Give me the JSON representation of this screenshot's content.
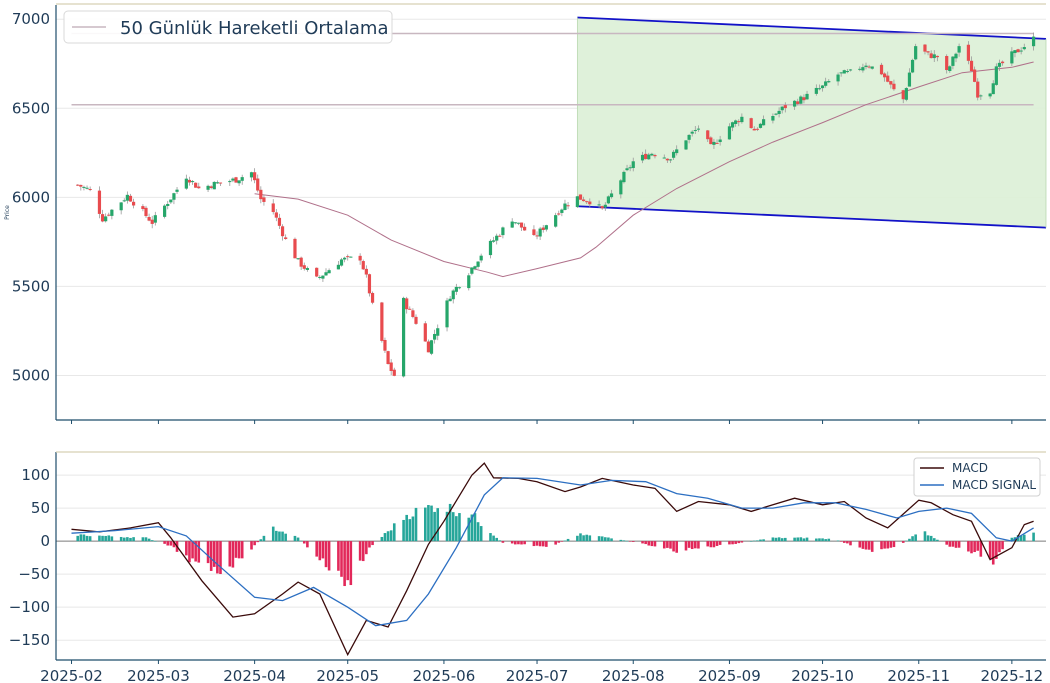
{
  "chart_data": [
    {
      "type": "candlestick",
      "ylabel": "Price",
      "ylim": [
        4750,
        7080
      ],
      "yticks": [
        5000,
        5500,
        6000,
        6500,
        7000
      ],
      "x_range": [
        "2025-01-27",
        "2025-12-12"
      ],
      "grid": "horizontal",
      "legend": {
        "position": "top-left",
        "entries": [
          "50 Günlük Hareketli Ortalama"
        ]
      },
      "price_keypoints": [
        [
          "2025-02-03",
          6070
        ],
        [
          "2025-02-07",
          6040
        ],
        [
          "2025-02-11",
          5880
        ],
        [
          "2025-02-19",
          6010
        ],
        [
          "2025-02-27",
          5860
        ],
        [
          "2025-03-06",
          6020
        ],
        [
          "2025-03-10",
          6120
        ],
        [
          "2025-03-14",
          6050
        ],
        [
          "2025-03-20",
          6080
        ],
        [
          "2025-03-26",
          6100
        ],
        [
          "2025-03-31",
          6140
        ],
        [
          "2025-04-03",
          5990
        ],
        [
          "2025-04-07",
          5920
        ],
        [
          "2025-04-11",
          5760
        ],
        [
          "2025-04-15",
          5640
        ],
        [
          "2025-04-21",
          5540
        ],
        [
          "2025-04-29",
          5650
        ],
        [
          "2025-05-05",
          5660
        ],
        [
          "2025-05-07",
          5550
        ],
        [
          "2025-05-09",
          5390
        ],
        [
          "2025-05-14",
          5060
        ],
        [
          "2025-05-16",
          5000
        ],
        [
          "2025-05-19",
          5420
        ],
        [
          "2025-05-23",
          5300
        ],
        [
          "2025-05-27",
          5150
        ],
        [
          "2025-06-03",
          5450
        ],
        [
          "2025-06-09",
          5580
        ],
        [
          "2025-06-13",
          5680
        ],
        [
          "2025-06-17",
          5760
        ],
        [
          "2025-06-23",
          5880
        ],
        [
          "2025-06-30",
          5770
        ],
        [
          "2025-07-04",
          5850
        ],
        [
          "2025-07-10",
          5960
        ],
        [
          "2025-07-14",
          6000
        ],
        [
          "2025-07-18",
          5980
        ],
        [
          "2025-07-22",
          5930
        ],
        [
          "2025-07-28",
          6100
        ],
        [
          "2025-08-01",
          6200
        ],
        [
          "2025-08-07",
          6250
        ],
        [
          "2025-08-13",
          6220
        ],
        [
          "2025-08-18",
          6330
        ],
        [
          "2025-08-22",
          6390
        ],
        [
          "2025-08-26",
          6280
        ],
        [
          "2025-09-01",
          6400
        ],
        [
          "2025-09-05",
          6450
        ],
        [
          "2025-09-09",
          6380
        ],
        [
          "2025-09-15",
          6460
        ],
        [
          "2025-09-19",
          6510
        ],
        [
          "2025-09-25",
          6560
        ],
        [
          "2025-10-01",
          6620
        ],
        [
          "2025-10-06",
          6690
        ],
        [
          "2025-10-10",
          6700
        ],
        [
          "2025-10-15",
          6750
        ],
        [
          "2025-10-20",
          6700
        ],
        [
          "2025-10-24",
          6600
        ],
        [
          "2025-10-27",
          6550
        ],
        [
          "2025-10-31",
          6850
        ],
        [
          "2025-11-04",
          6800
        ],
        [
          "2025-11-07",
          6790
        ],
        [
          "2025-11-10",
          6700
        ],
        [
          "2025-11-14",
          6850
        ],
        [
          "2025-11-18",
          6720
        ],
        [
          "2025-11-20",
          6580
        ],
        [
          "2025-11-24",
          6600
        ],
        [
          "2025-11-26",
          6720
        ],
        [
          "2025-12-01",
          6800
        ],
        [
          "2025-12-05",
          6850
        ],
        [
          "2025-12-08",
          6890
        ]
      ],
      "moving_average_50d": [
        [
          "2025-04-01",
          6020
        ],
        [
          "2025-04-15",
          5990
        ],
        [
          "2025-05-01",
          5900
        ],
        [
          "2025-05-15",
          5760
        ],
        [
          "2025-06-01",
          5640
        ],
        [
          "2025-06-15",
          5580
        ],
        [
          "2025-06-20",
          5555
        ],
        [
          "2025-07-01",
          5600
        ],
        [
          "2025-07-15",
          5660
        ],
        [
          "2025-07-20",
          5720
        ],
        [
          "2025-08-01",
          5900
        ],
        [
          "2025-08-15",
          6050
        ],
        [
          "2025-09-01",
          6200
        ],
        [
          "2025-09-15",
          6310
        ],
        [
          "2025-10-01",
          6420
        ],
        [
          "2025-10-15",
          6520
        ],
        [
          "2025-11-01",
          6620
        ],
        [
          "2025-11-15",
          6700
        ],
        [
          "2025-12-01",
          6730
        ],
        [
          "2025-12-08",
          6760
        ]
      ],
      "horizontal_levels": [
        {
          "from": "2025-02-01",
          "to": "2025-12-08",
          "value": 6520
        },
        {
          "from": "2025-02-01",
          "to": "2025-12-08",
          "value": 6920
        }
      ],
      "channel": {
        "upper": [
          [
            "2025-07-14",
            7010
          ],
          [
            "2025-12-12",
            6890
          ]
        ],
        "lower": [
          [
            "2025-07-14",
            5950
          ],
          [
            "2025-12-12",
            5830
          ]
        ],
        "fill_color": "#dcefd6",
        "line_color": "#1212c8"
      },
      "colors": {
        "up": "#26a66a",
        "down": "#e84b4e",
        "ma": "#b0708a",
        "level": "#c8b7c0"
      }
    },
    {
      "type": "line",
      "ylim": [
        -180,
        135
      ],
      "yticks": [
        100,
        50,
        0,
        -50,
        -100,
        -150
      ],
      "xticks": [
        "2025-02",
        "2025-03",
        "2025-04",
        "2025-05",
        "2025-06",
        "2025-07",
        "2025-08",
        "2025-09",
        "2025-10",
        "2025-11",
        "2025-12"
      ],
      "x_range": [
        "2025-01-27",
        "2025-12-12"
      ],
      "legend": {
        "position": "top-right"
      },
      "series": [
        {
          "name": "MACD",
          "color": "#3a0a0a",
          "points": [
            [
              "2025-02-01",
              18
            ],
            [
              "2025-02-10",
              14
            ],
            [
              "2025-02-20",
              20
            ],
            [
              "2025-03-01",
              28
            ],
            [
              "2025-03-05",
              5
            ],
            [
              "2025-03-15",
              -60
            ],
            [
              "2025-03-25",
              -115
            ],
            [
              "2025-04-01",
              -110
            ],
            [
              "2025-04-10",
              -80
            ],
            [
              "2025-04-15",
              -62
            ],
            [
              "2025-04-22",
              -80
            ],
            [
              "2025-05-01",
              -172
            ],
            [
              "2025-05-07",
              -120
            ],
            [
              "2025-05-14",
              -130
            ],
            [
              "2025-05-20",
              -75
            ],
            [
              "2025-05-27",
              -5
            ],
            [
              "2025-06-01",
              30
            ],
            [
              "2025-06-10",
              100
            ],
            [
              "2025-06-14",
              118
            ],
            [
              "2025-06-17",
              96
            ],
            [
              "2025-06-25",
              95
            ],
            [
              "2025-07-01",
              90
            ],
            [
              "2025-07-10",
              75
            ],
            [
              "2025-07-15",
              82
            ],
            [
              "2025-07-22",
              95
            ],
            [
              "2025-08-01",
              85
            ],
            [
              "2025-08-08",
              80
            ],
            [
              "2025-08-15",
              45
            ],
            [
              "2025-08-22",
              60
            ],
            [
              "2025-09-01",
              55
            ],
            [
              "2025-09-08",
              45
            ],
            [
              "2025-09-15",
              55
            ],
            [
              "2025-09-22",
              65
            ],
            [
              "2025-10-01",
              55
            ],
            [
              "2025-10-08",
              60
            ],
            [
              "2025-10-15",
              35
            ],
            [
              "2025-10-22",
              20
            ],
            [
              "2025-11-01",
              62
            ],
            [
              "2025-11-05",
              58
            ],
            [
              "2025-11-12",
              40
            ],
            [
              "2025-11-18",
              30
            ],
            [
              "2025-11-24",
              -28
            ],
            [
              "2025-12-01",
              -10
            ],
            [
              "2025-12-05",
              25
            ],
            [
              "2025-12-08",
              30
            ]
          ]
        },
        {
          "name": "MACD SIGNAL",
          "color": "#2c6fc2",
          "points": [
            [
              "2025-02-01",
              12
            ],
            [
              "2025-02-15",
              16
            ],
            [
              "2025-03-01",
              22
            ],
            [
              "2025-03-10",
              8
            ],
            [
              "2025-03-20",
              -35
            ],
            [
              "2025-04-01",
              -85
            ],
            [
              "2025-04-10",
              -90
            ],
            [
              "2025-04-20",
              -70
            ],
            [
              "2025-05-01",
              -100
            ],
            [
              "2025-05-10",
              -128
            ],
            [
              "2025-05-20",
              -120
            ],
            [
              "2025-05-27",
              -80
            ],
            [
              "2025-06-05",
              -10
            ],
            [
              "2025-06-14",
              70
            ],
            [
              "2025-06-20",
              96
            ],
            [
              "2025-07-01",
              95
            ],
            [
              "2025-07-15",
              85
            ],
            [
              "2025-07-25",
              92
            ],
            [
              "2025-08-05",
              90
            ],
            [
              "2025-08-15",
              72
            ],
            [
              "2025-08-25",
              65
            ],
            [
              "2025-09-05",
              50
            ],
            [
              "2025-09-15",
              50
            ],
            [
              "2025-09-25",
              58
            ],
            [
              "2025-10-05",
              58
            ],
            [
              "2025-10-15",
              48
            ],
            [
              "2025-10-25",
              35
            ],
            [
              "2025-11-01",
              45
            ],
            [
              "2025-11-10",
              50
            ],
            [
              "2025-11-18",
              42
            ],
            [
              "2025-11-26",
              5
            ],
            [
              "2025-12-01",
              0
            ],
            [
              "2025-12-08",
              20
            ]
          ]
        }
      ],
      "histogram": {
        "pos_color": "#26a69a",
        "neg_color": "#e2285a",
        "keypoints": [
          [
            "2025-02-01",
            10
          ],
          [
            "2025-02-25",
            5
          ],
          [
            "2025-03-05",
            -8
          ],
          [
            "2025-03-15",
            -40
          ],
          [
            "2025-03-22",
            -45
          ],
          [
            "2025-03-30",
            -15
          ],
          [
            "2025-04-07",
            20
          ],
          [
            "2025-04-15",
            5
          ],
          [
            "2025-04-25",
            -40
          ],
          [
            "2025-05-01",
            -65
          ],
          [
            "2025-05-08",
            -10
          ],
          [
            "2025-05-20",
            40
          ],
          [
            "2025-05-30",
            55
          ],
          [
            "2025-06-10",
            40
          ],
          [
            "2025-06-20",
            -3
          ],
          [
            "2025-07-05",
            -8
          ],
          [
            "2025-07-15",
            10
          ],
          [
            "2025-07-25",
            5
          ],
          [
            "2025-08-05",
            -5
          ],
          [
            "2025-08-15",
            -15
          ],
          [
            "2025-09-01",
            -5
          ],
          [
            "2025-09-15",
            5
          ],
          [
            "2025-09-25",
            5
          ],
          [
            "2025-10-05",
            3
          ],
          [
            "2025-10-15",
            -15
          ],
          [
            "2025-10-25",
            -8
          ],
          [
            "2025-11-02",
            15
          ],
          [
            "2025-11-12",
            -10
          ],
          [
            "2025-11-20",
            -18
          ],
          [
            "2025-11-25",
            -32
          ],
          [
            "2025-12-01",
            5
          ],
          [
            "2025-12-08",
            15
          ]
        ]
      }
    }
  ]
}
